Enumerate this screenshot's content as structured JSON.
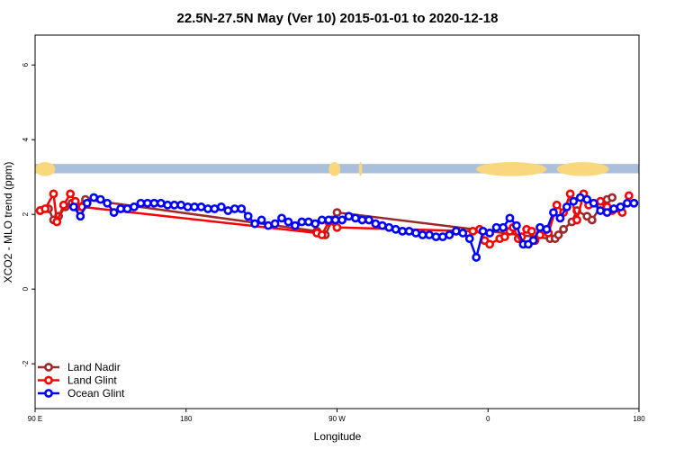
{
  "chart_data": {
    "type": "line",
    "title": "22.5N-27.5N May (Ver 10)   2015-01-01 to 2020-12-18",
    "xlabel": "Longitude",
    "ylabel": "XCO2 - MLO trend (ppm)",
    "xlim": [
      90,
      450
    ],
    "ylim": [
      -3.2,
      6.8
    ],
    "x_ticks": [
      {
        "value": 90,
        "label": "90 E"
      },
      {
        "value": 180,
        "label": "180"
      },
      {
        "value": 270,
        "label": "90 W"
      },
      {
        "value": 360,
        "label": "0"
      },
      {
        "value": 450,
        "label": "180"
      }
    ],
    "y_ticks": [
      -2,
      0,
      2,
      4,
      6
    ],
    "x_ticks_minor": [
      90,
      180,
      270,
      360,
      450,
      540
    ],
    "legend_position": "bottom-left",
    "background_map_band": {
      "y_range": [
        3.1,
        3.35
      ],
      "ocean_color": "#a9bfdc",
      "land_color": "#f9d77c"
    },
    "series": [
      {
        "name": "Land Nadir",
        "color": "#9b2a2a",
        "x": [
          93,
          98,
          101,
          104,
          108,
          112,
          115,
          120,
          258,
          263,
          267,
          270,
          397,
          400,
          402,
          405,
          410,
          413,
          419,
          422,
          427,
          431,
          434
        ],
        "y": [
          2.1,
          2.15,
          1.85,
          1.95,
          2.2,
          2.3,
          2.2,
          2.4,
          1.55,
          1.45,
          1.85,
          2.05,
          1.35,
          1.35,
          1.45,
          1.6,
          1.8,
          2.1,
          1.95,
          1.85,
          2.2,
          2.4,
          2.45
        ]
      },
      {
        "name": "Land Glint",
        "color": "#ff0000",
        "x": [
          93,
          96,
          101,
          103,
          107,
          111,
          114,
          118,
          258,
          261,
          265,
          270,
          351,
          355,
          358,
          361,
          367,
          370,
          373,
          375,
          378,
          380,
          383,
          386,
          388,
          391,
          396,
          401,
          405,
          409,
          413,
          417,
          420,
          427,
          431,
          434,
          440,
          444
        ],
        "y": [
          2.1,
          2.15,
          2.55,
          1.8,
          2.25,
          2.55,
          2.35,
          2.2,
          1.5,
          1.45,
          1.8,
          1.65,
          1.55,
          1.6,
          1.3,
          1.2,
          1.35,
          1.4,
          1.55,
          1.65,
          1.35,
          1.4,
          1.6,
          1.55,
          1.3,
          1.45,
          1.5,
          2.25,
          2.05,
          2.55,
          1.85,
          2.55,
          2.25,
          2.35,
          2.2,
          2.1,
          2.05,
          2.5
        ]
      },
      {
        "name": "Ocean Glint",
        "color": "#0000ff",
        "x": [
          113,
          117,
          121,
          125,
          129,
          133,
          137,
          141,
          145,
          149,
          153,
          157,
          161,
          165,
          169,
          173,
          177,
          181,
          185,
          189,
          193,
          197,
          201,
          205,
          209,
          213,
          217,
          221,
          225,
          229,
          233,
          237,
          241,
          245,
          249,
          253,
          257,
          261,
          265,
          269,
          273,
          277,
          281,
          285,
          289,
          293,
          297,
          301,
          305,
          309,
          313,
          317,
          321,
          325,
          329,
          333,
          337,
          341,
          345,
          349,
          353,
          357,
          361,
          365,
          369,
          373,
          377,
          381,
          384,
          387,
          391,
          395,
          399,
          403,
          407,
          411,
          415,
          419,
          423,
          427,
          431,
          435,
          439,
          443,
          447
        ],
        "y": [
          2.2,
          1.95,
          2.3,
          2.45,
          2.4,
          2.3,
          2.05,
          2.15,
          2.15,
          2.2,
          2.3,
          2.3,
          2.3,
          2.3,
          2.25,
          2.25,
          2.25,
          2.2,
          2.2,
          2.2,
          2.15,
          2.15,
          2.2,
          2.1,
          2.15,
          2.15,
          1.95,
          1.75,
          1.85,
          1.7,
          1.75,
          1.9,
          1.8,
          1.7,
          1.8,
          1.8,
          1.75,
          1.85,
          1.85,
          1.85,
          1.85,
          1.95,
          1.9,
          1.85,
          1.85,
          1.75,
          1.7,
          1.65,
          1.6,
          1.55,
          1.55,
          1.5,
          1.45,
          1.45,
          1.4,
          1.4,
          1.45,
          1.55,
          1.5,
          1.35,
          0.85,
          1.55,
          1.5,
          1.65,
          1.65,
          1.9,
          1.7,
          1.2,
          1.2,
          1.3,
          1.65,
          1.6,
          2.05,
          1.9,
          2.2,
          2.35,
          2.45,
          2.4,
          2.3,
          2.1,
          2.05,
          2.15,
          2.2,
          2.3,
          2.3
        ]
      }
    ]
  }
}
